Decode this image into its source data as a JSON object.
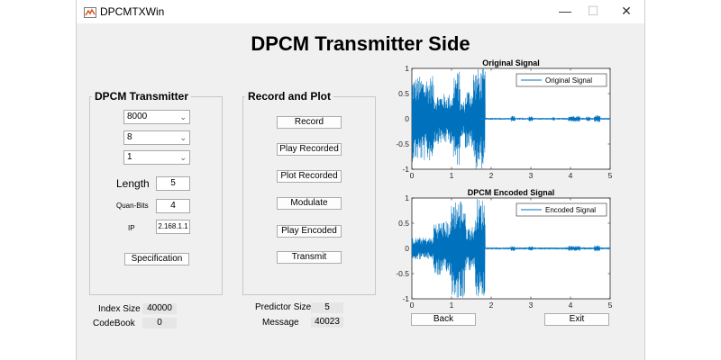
{
  "window": {
    "title": "DPCMTXWin",
    "controls": {
      "minimize": "—",
      "maximize": "☐",
      "close": "✕"
    }
  },
  "heading": "DPCM Transmitter Side",
  "dpcm_panel": {
    "title": "DPCM Transmitter",
    "sample_rate": "8000",
    "bits": "8",
    "channels": "1",
    "length_label": "Length",
    "length_value": "5",
    "quan_bits_label": "Quan-Bits",
    "quan_bits_value": "4",
    "ip_label": "IP",
    "ip_value": "2.168.1.1",
    "spec_button": "Specification"
  },
  "record_panel": {
    "title": "Record and Plot",
    "buttons": {
      "record": "Record",
      "play_recorded": "Play Recorded",
      "plot_recorded": "Plot Recorded",
      "modulate": "Modulate",
      "play_encoded": "Play Encoded",
      "transmit": "Transmit"
    }
  },
  "stats": {
    "index_size_label": "Index Size",
    "index_size_value": "40000",
    "codebook_label": "CodeBook",
    "codebook_value": "0",
    "predictor_size_label": "Predictor Size",
    "predictor_size_value": "5",
    "message_label": "Message",
    "message_value": "40023"
  },
  "nav": {
    "back": "Back",
    "exit": "Exit"
  },
  "colors": {
    "signal": "#0072bd",
    "window_bg": "#f0f0f0"
  },
  "chart_data": [
    {
      "type": "line",
      "title": "Original Signal",
      "legend": "Original Signal",
      "legend_position": "top-right",
      "xlim": [
        0,
        5
      ],
      "ylim": [
        -1,
        1
      ],
      "x_ticks": [
        0,
        1,
        2,
        3,
        4,
        5
      ],
      "y_ticks": [
        -1,
        -0.5,
        0,
        0.5,
        1
      ],
      "x_tick_labels": [
        "0",
        "1",
        "2",
        "3",
        "4",
        "5"
      ],
      "y_tick_labels": [
        "-1",
        "-0.5",
        "0",
        "0.5",
        "1"
      ],
      "segments": [
        {
          "x0": 0.0,
          "x1": 0.55,
          "amp": 0.85
        },
        {
          "x0": 0.55,
          "x1": 1.05,
          "amp": 0.5
        },
        {
          "x0": 1.05,
          "x1": 1.22,
          "amp": 0.95
        },
        {
          "x0": 1.22,
          "x1": 1.35,
          "amp": 0.35
        },
        {
          "x0": 1.35,
          "x1": 1.55,
          "amp": 0.6
        },
        {
          "x0": 1.55,
          "x1": 1.85,
          "amp": 1.0
        },
        {
          "x0": 1.85,
          "x1": 5.0,
          "amp": 0.015
        }
      ],
      "bursts": [
        {
          "x0": 2.5,
          "x1": 2.6,
          "amp": 0.06
        },
        {
          "x0": 2.95,
          "x1": 3.05,
          "amp": 0.05
        },
        {
          "x0": 3.55,
          "x1": 3.6,
          "amp": 0.04
        },
        {
          "x0": 3.95,
          "x1": 4.25,
          "amp": 0.06
        },
        {
          "x0": 4.4,
          "x1": 4.5,
          "amp": 0.05
        },
        {
          "x0": 4.6,
          "x1": 4.75,
          "amp": 0.07
        }
      ]
    },
    {
      "type": "line",
      "title": "DPCM Encoded Signal",
      "legend": "Encoded Signal",
      "legend_position": "top-right",
      "xlim": [
        0,
        5
      ],
      "ylim": [
        -1,
        1
      ],
      "x_ticks": [
        0,
        1,
        2,
        3,
        4,
        5
      ],
      "y_ticks": [
        -1,
        -0.5,
        0,
        0.5,
        1
      ],
      "x_tick_labels": [
        "0",
        "1",
        "2",
        "3",
        "4",
        "5"
      ],
      "y_tick_labels": [
        "-1",
        "-0.5",
        "0",
        "0.5",
        "1"
      ],
      "segments": [
        {
          "x0": 0.0,
          "x1": 0.55,
          "amp": 0.22
        },
        {
          "x0": 0.55,
          "x1": 1.0,
          "amp": 0.55
        },
        {
          "x0": 1.0,
          "x1": 1.35,
          "amp": 1.0
        },
        {
          "x0": 1.35,
          "x1": 1.6,
          "amp": 0.45
        },
        {
          "x0": 1.6,
          "x1": 1.85,
          "amp": 1.0
        },
        {
          "x0": 1.85,
          "x1": 5.0,
          "amp": 0.01
        }
      ],
      "bursts": [
        {
          "x0": 2.5,
          "x1": 2.6,
          "amp": 0.05
        },
        {
          "x0": 2.95,
          "x1": 3.05,
          "amp": 0.04
        },
        {
          "x0": 3.95,
          "x1": 4.25,
          "amp": 0.05
        },
        {
          "x0": 4.6,
          "x1": 4.75,
          "amp": 0.06
        }
      ]
    }
  ]
}
